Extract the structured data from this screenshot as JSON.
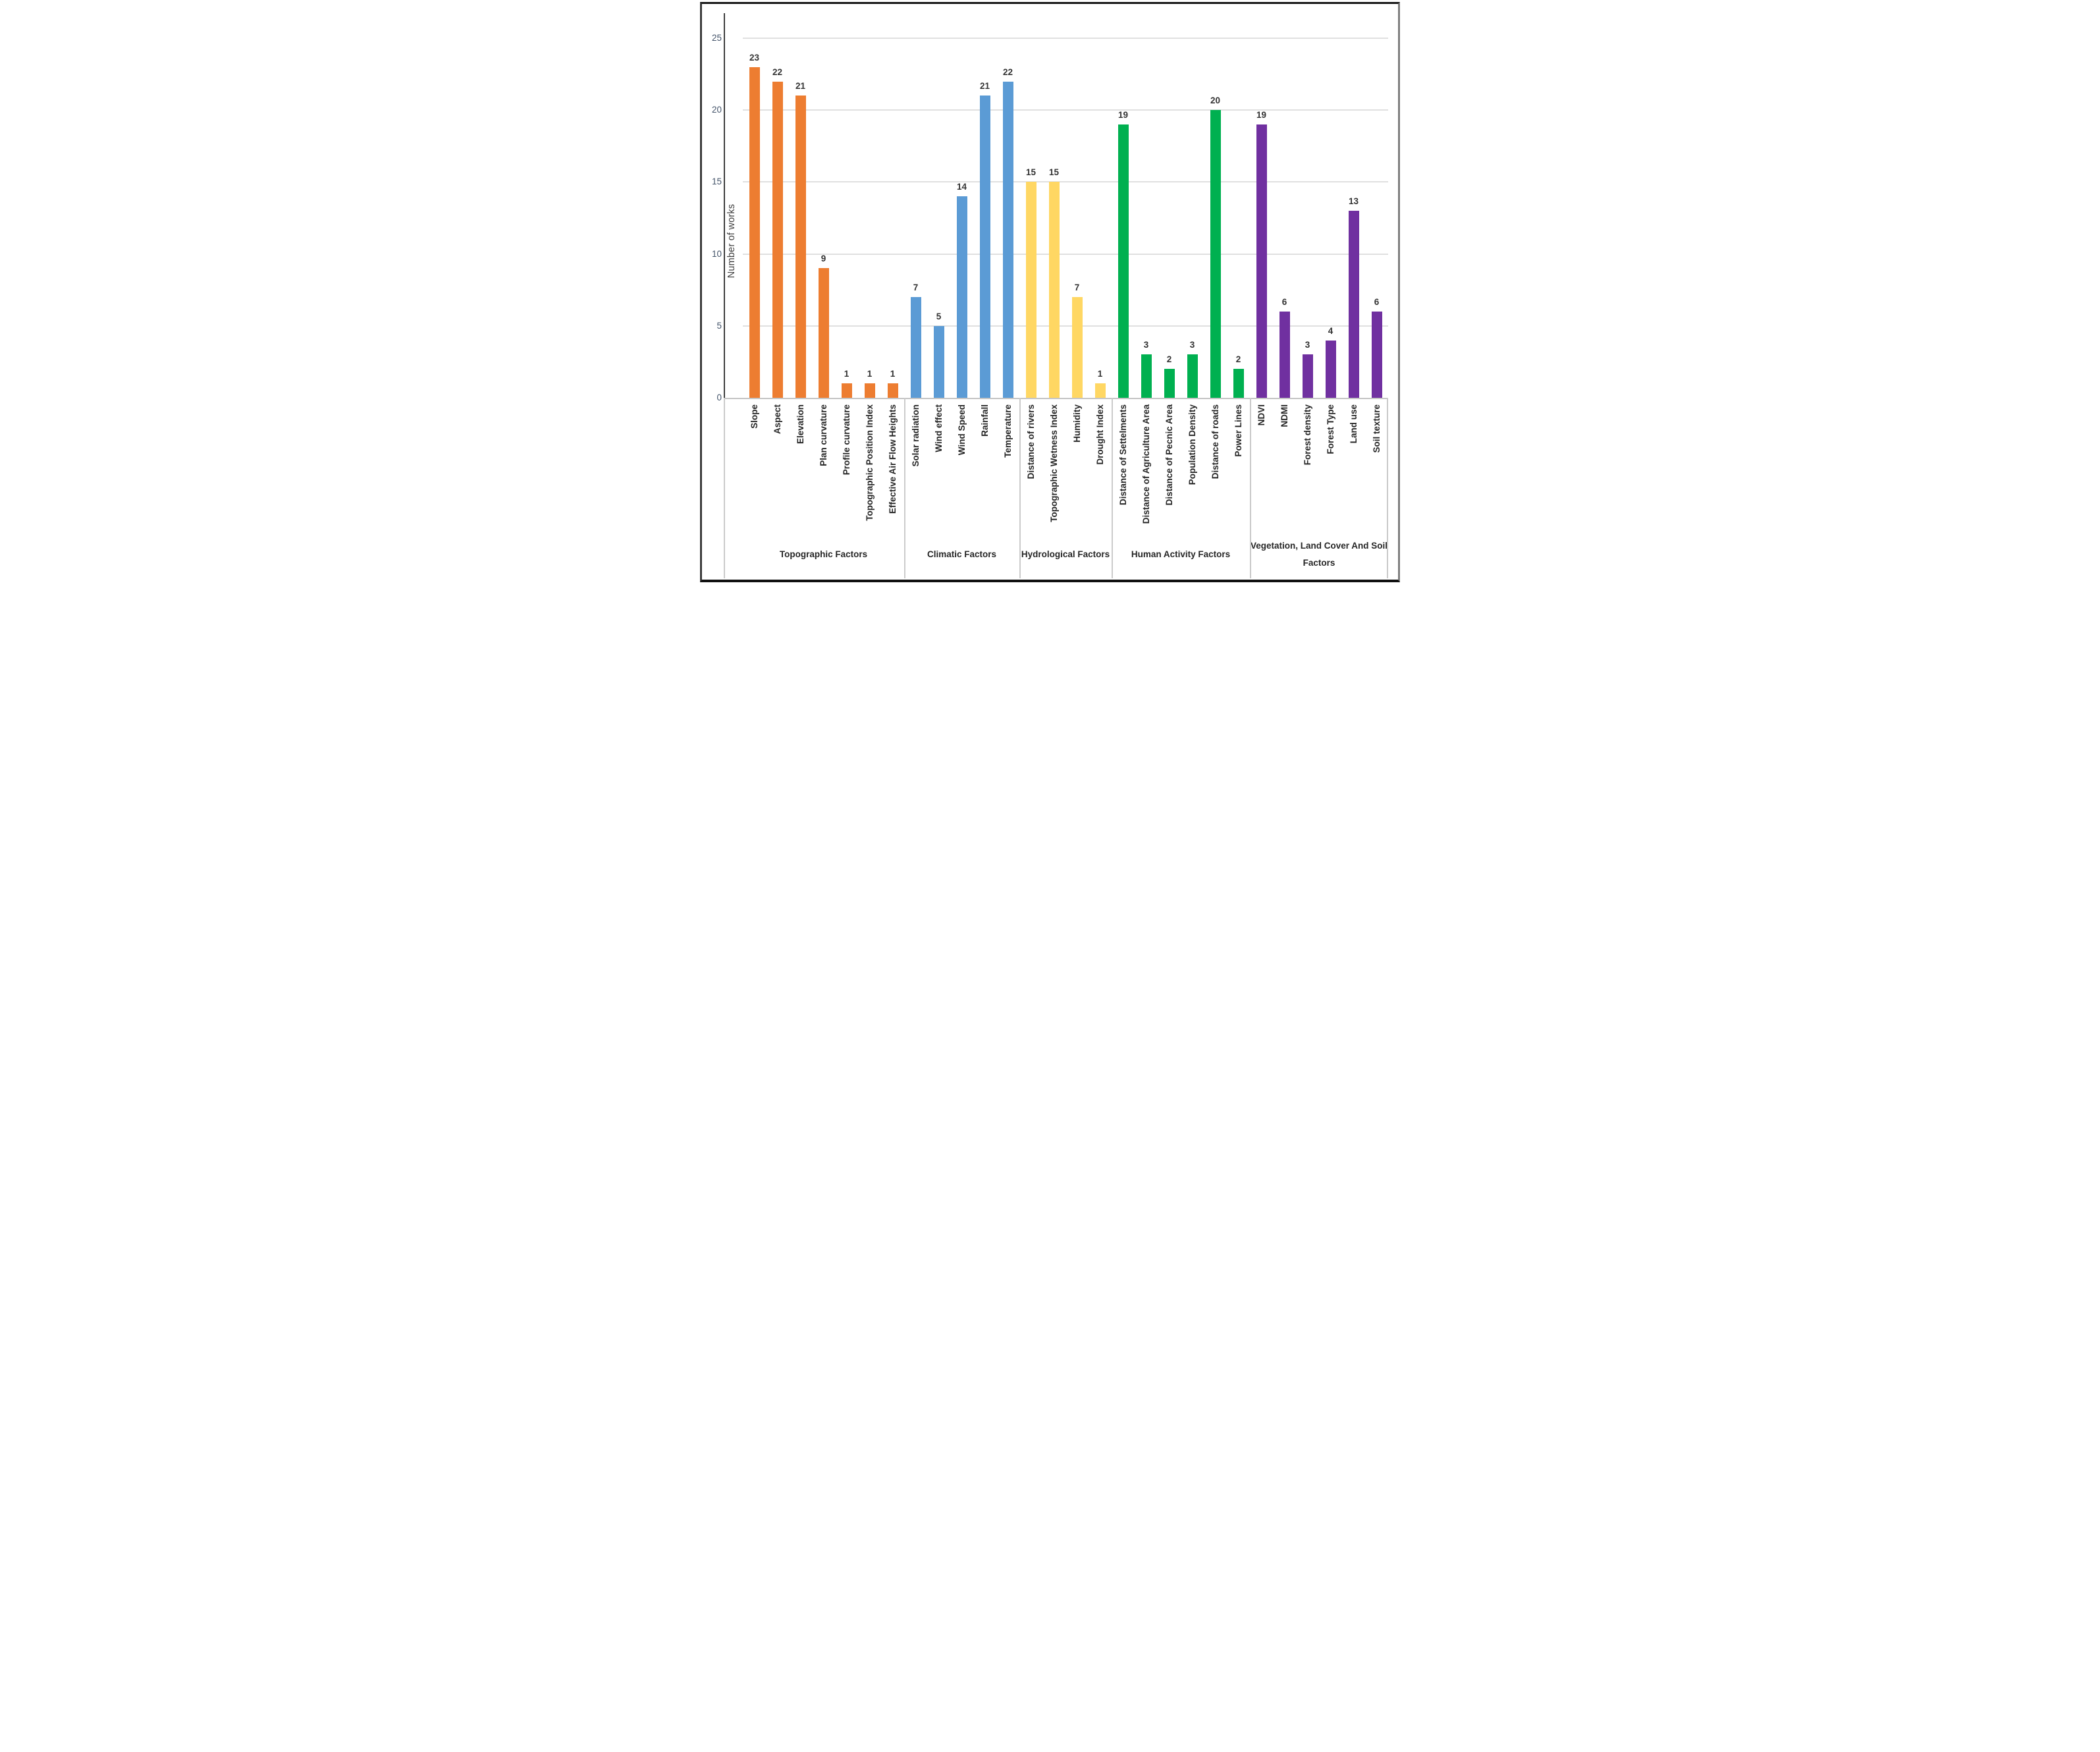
{
  "chart_data": {
    "type": "bar",
    "title": "",
    "xlabel": "",
    "ylabel": "Number of works",
    "ylim": [
      0,
      25
    ],
    "yticks": [
      0,
      5,
      10,
      15,
      20,
      25
    ],
    "grid": true,
    "legend_position": "none",
    "value_labels": "above bars",
    "category_label_rotation": "90deg bottom-to-top",
    "groups": [
      {
        "label": "Topographic Factors",
        "color": "#ED7D31",
        "bars": [
          {
            "category": "Slope",
            "value": 23
          },
          {
            "category": "Aspect",
            "value": 22
          },
          {
            "category": "Elevation",
            "value": 21
          },
          {
            "category": "Plan curvature",
            "value": 9
          },
          {
            "category": "Profile curvature",
            "value": 1
          },
          {
            "category": "Topographic Position Index",
            "value": 1
          },
          {
            "category": "Effective Air Flow Heights",
            "value": 1
          }
        ]
      },
      {
        "label": "Climatic Factors",
        "color": "#5B9BD5",
        "bars": [
          {
            "category": "Solar radiation",
            "value": 7
          },
          {
            "category": "Wind effect",
            "value": 5
          },
          {
            "category": "Wind Speed",
            "value": 14
          },
          {
            "category": "Rainfall",
            "value": 21
          },
          {
            "category": "Temperature",
            "value": 22
          }
        ]
      },
      {
        "label": "Hydrological Factors",
        "color": "#FFD763",
        "bars": [
          {
            "category": "Distance of rivers",
            "value": 15
          },
          {
            "category": "Topographic Wetness Index",
            "value": 15
          },
          {
            "category": "Humidity",
            "value": 7
          },
          {
            "category": "Drought Index",
            "value": 1
          }
        ]
      },
      {
        "label": "Human Activity Factors",
        "color": "#00B050",
        "bars": [
          {
            "category": "Distance of Settelments",
            "value": 19
          },
          {
            "category": "Distance of Agriculture Area",
            "value": 3
          },
          {
            "category": "Distance of Pecnic Area",
            "value": 2
          },
          {
            "category": "Population Density",
            "value": 3
          },
          {
            "category": "Distance of roads",
            "value": 20
          },
          {
            "category": "Power Lines",
            "value": 2
          }
        ]
      },
      {
        "label": "Vegetation, Land Cover And Soil Factors",
        "color": "#7030A0",
        "bars": [
          {
            "category": "NDVI",
            "value": 19
          },
          {
            "category": "NDMI",
            "value": 6
          },
          {
            "category": "Forest density",
            "value": 3
          },
          {
            "category": "Forest Type",
            "value": 4
          },
          {
            "category": "Land use",
            "value": 13
          },
          {
            "category": "Soil texture",
            "value": 6
          }
        ]
      }
    ],
    "colors": {
      "gridline": "#e0e0e0",
      "y_axis_line": "#3f3f3f",
      "x_axis_line": "#c6c6c6",
      "tick_text": "#44546a",
      "label_text": "#262626",
      "value_text": "#333333"
    }
  }
}
